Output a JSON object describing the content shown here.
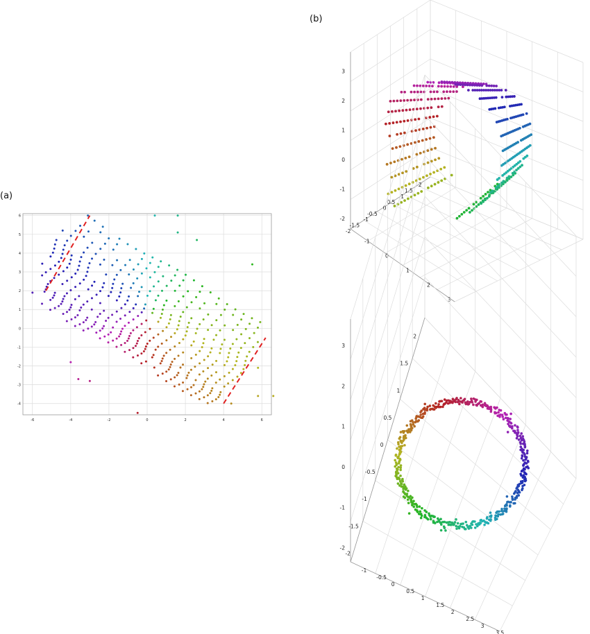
{
  "panel_labels": {
    "a": "(a)",
    "b": "(b)"
  },
  "chart_data": [
    {
      "id": "a",
      "type": "scatter",
      "title": "",
      "xlabel": "",
      "ylabel": "",
      "xlim": [
        -6.5,
        6.5
      ],
      "ylim": [
        -4.6,
        6.1
      ],
      "xticks": [
        "-6",
        "-4",
        "-2",
        "0",
        "2",
        "4",
        "6"
      ],
      "yticks": [
        "-4",
        "-3",
        "-2",
        "-1",
        "0",
        "1",
        "2",
        "3",
        "4",
        "5",
        "6"
      ],
      "grid": true,
      "points_description": "flattened fan of concentric point arcs coloured by hue",
      "lattice": {
        "center": [
          0.0,
          0.8
        ],
        "rows": 22,
        "cols": 24
      },
      "outliers": [
        {
          "x": -6.0,
          "y": 1.9
        },
        {
          "x": -3.1,
          "y": 6.0
        },
        {
          "x": 0.4,
          "y": 6.0
        },
        {
          "x": 1.6,
          "y": 6.0
        },
        {
          "x": 1.6,
          "y": 5.1
        },
        {
          "x": 2.6,
          "y": 4.7
        },
        {
          "x": 5.5,
          "y": 3.4
        },
        {
          "x": -4.0,
          "y": -1.8
        },
        {
          "x": -3.6,
          "y": -2.7
        },
        {
          "x": -3.0,
          "y": -2.8
        },
        {
          "x": -0.5,
          "y": -4.5
        },
        {
          "x": 4.4,
          "y": -4.0
        },
        {
          "x": 5.8,
          "y": -3.6
        },
        {
          "x": 6.6,
          "y": -3.6
        },
        {
          "x": 5.8,
          "y": -2.1
        }
      ],
      "cut_lines": [
        {
          "x": [
            -5.3,
            -3.0
          ],
          "y": [
            2.0,
            6.0
          ]
        },
        {
          "x": [
            4.0,
            6.2
          ],
          "y": [
            -4.0,
            -0.5
          ]
        }
      ]
    },
    {
      "id": "b-top",
      "type": "scatter",
      "title": "",
      "projection": "3d",
      "description": "point cloud folded into a cylinder, coloured by hue",
      "zticks": [
        "-2",
        "-1",
        "0",
        "1",
        "2",
        "3"
      ],
      "xticks": [
        "2",
        "1.5",
        "1",
        "0.5",
        "0",
        "-0.5",
        "-1",
        "-1.5",
        "-2"
      ],
      "yticks": [
        "-1",
        "0",
        "1",
        "2",
        "3"
      ],
      "grid": true
    },
    {
      "id": "b-bottom",
      "type": "scatter",
      "title": "",
      "projection": "3d",
      "description": "same point cloud viewed along the cylinder axis, forming a ring",
      "zticks": [
        "-2",
        "-1",
        "0",
        "1",
        "2",
        "3"
      ],
      "xticks": [
        "2",
        "1.5",
        "1",
        "0.5",
        "0",
        "-0.5",
        "-1",
        "-1.5",
        "-2"
      ],
      "yticks": [
        "-1",
        "-0.5",
        "0",
        "0.5",
        "1",
        "1.5",
        "2",
        "2.5",
        "3",
        "3.5"
      ],
      "grid": true
    }
  ],
  "colors": {
    "cut_line": "#e02020",
    "grid": "#dcdcdc"
  }
}
